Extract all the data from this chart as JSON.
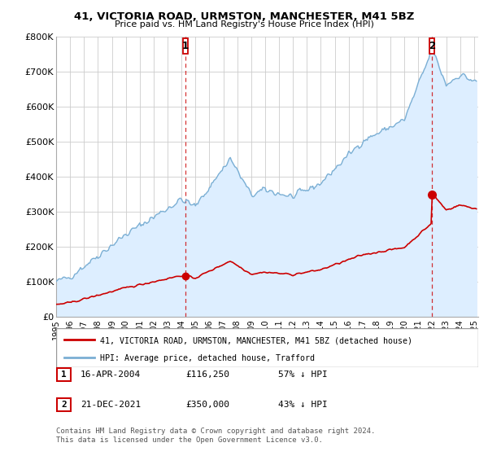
{
  "title": "41, VICTORIA ROAD, URMSTON, MANCHESTER, M41 5BZ",
  "subtitle": "Price paid vs. HM Land Registry's House Price Index (HPI)",
  "legend_line1": "41, VICTORIA ROAD, URMSTON, MANCHESTER, M41 5BZ (detached house)",
  "legend_line2": "HPI: Average price, detached house, Trafford",
  "footnote": "Contains HM Land Registry data © Crown copyright and database right 2024.\nThis data is licensed under the Open Government Licence v3.0.",
  "sale1_label": "1",
  "sale1_date": "16-APR-2004",
  "sale1_price": "£116,250",
  "sale1_hpi": "57% ↓ HPI",
  "sale2_label": "2",
  "sale2_date": "21-DEC-2021",
  "sale2_price": "£350,000",
  "sale2_hpi": "43% ↓ HPI",
  "red_color": "#cc0000",
  "blue_color": "#7bafd4",
  "blue_fill_color": "#ddeeff",
  "marker_box_color": "#cc0000",
  "ylim": [
    0,
    800000
  ],
  "yticks": [
    0,
    100000,
    200000,
    300000,
    400000,
    500000,
    600000,
    700000,
    800000
  ],
  "ytick_labels": [
    "£0",
    "£100K",
    "£200K",
    "£300K",
    "£400K",
    "£500K",
    "£600K",
    "£700K",
    "£800K"
  ],
  "sale_year1": 2004.28,
  "sale_value1": 116250,
  "sale_year2": 2021.97,
  "sale_value2": 350000,
  "xlim_left": 1995.0,
  "xlim_right": 2025.3
}
